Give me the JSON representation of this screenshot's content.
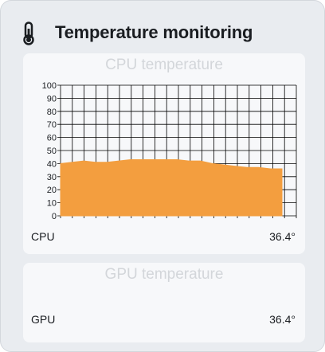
{
  "header": {
    "title": "Temperature monitoring",
    "icon": "thermometer-icon"
  },
  "cpu": {
    "title": "CPU temperature",
    "label": "CPU",
    "value": "36.4°"
  },
  "gpu": {
    "title": "GPU temperature",
    "label": "GPU",
    "value": "36.4°"
  },
  "colors": {
    "fill": "#f39e3f",
    "grid": "#000000"
  },
  "chart_data": {
    "type": "area",
    "title": "CPU temperature",
    "xlabel": "",
    "ylabel": "",
    "ylim": [
      0,
      100
    ],
    "yticks": [
      0,
      10,
      20,
      30,
      40,
      50,
      60,
      70,
      80,
      90,
      100
    ],
    "grid": true,
    "series": [
      {
        "values": [
          40,
          41,
          42,
          41,
          41,
          42,
          43,
          43,
          43,
          43,
          43,
          42,
          42,
          40,
          39,
          38,
          37,
          37,
          36,
          36
        ]
      }
    ]
  }
}
